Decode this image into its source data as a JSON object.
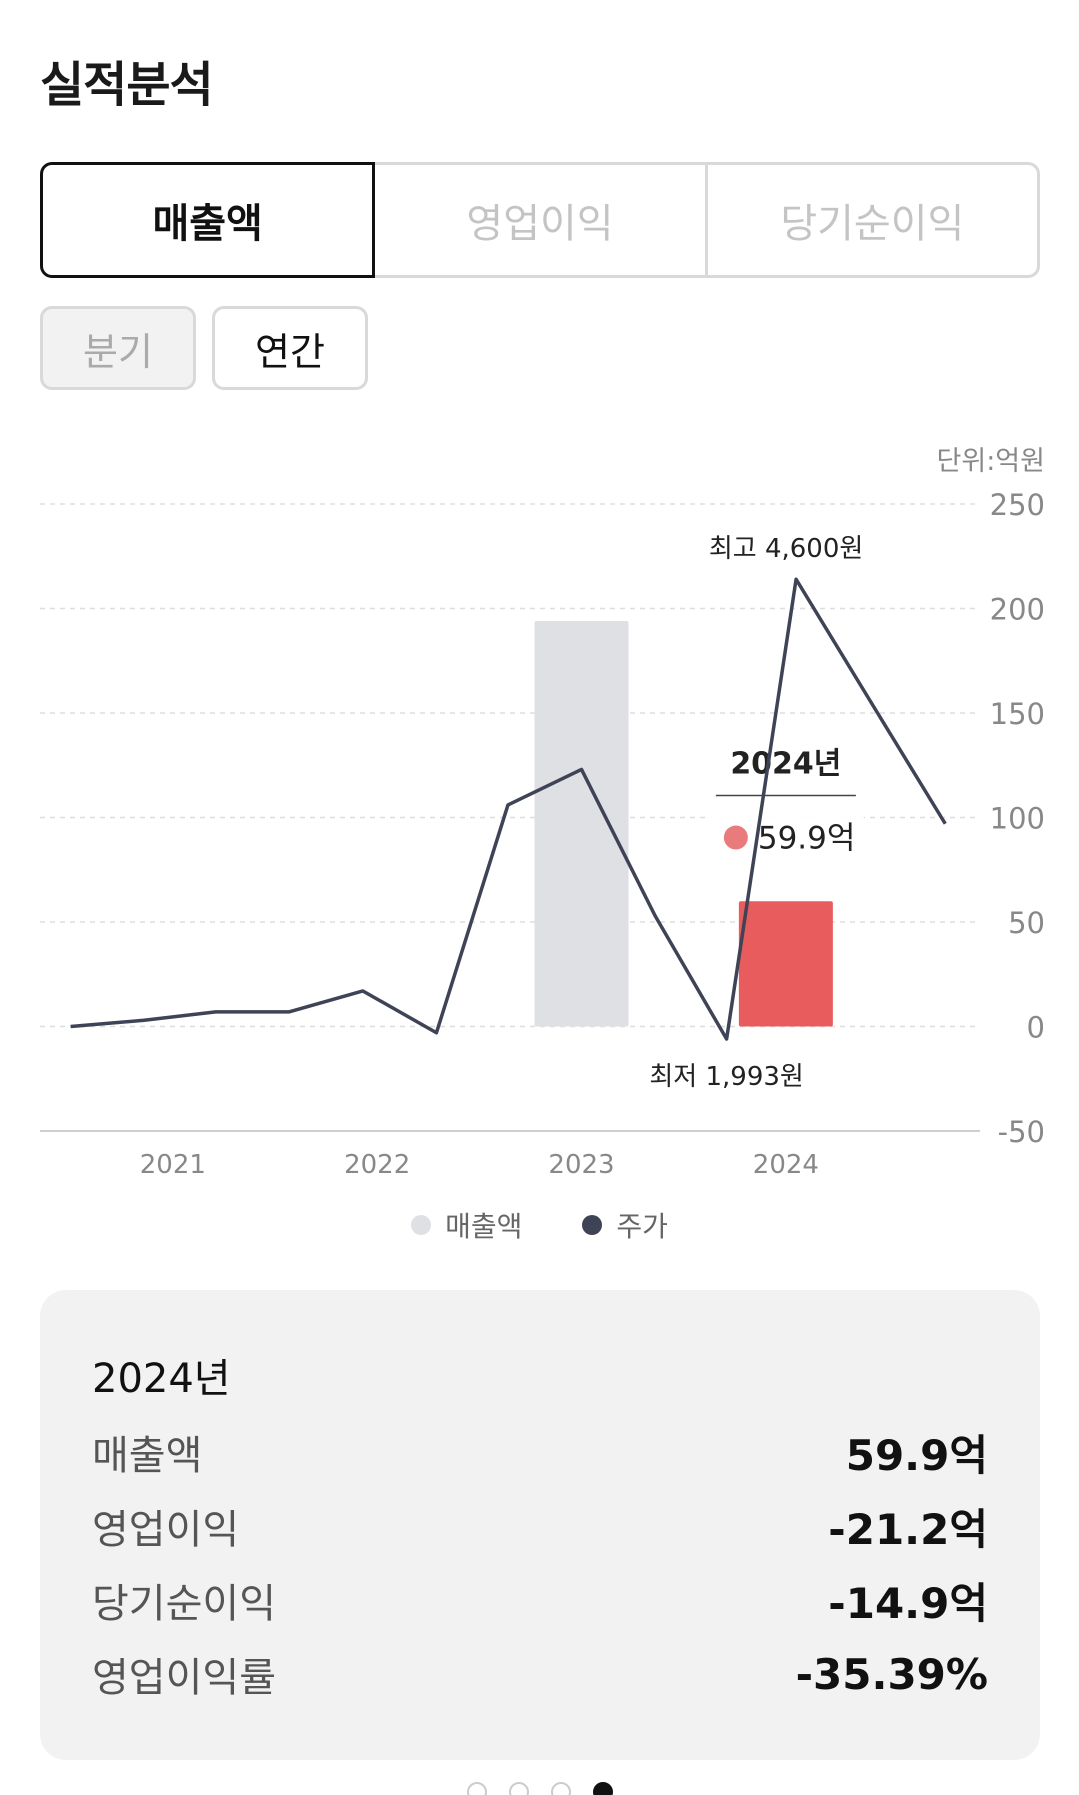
{
  "title": "실적분석",
  "tabs": [
    {
      "label": "매출액",
      "active": true
    },
    {
      "label": "영업이익",
      "active": false
    },
    {
      "label": "당기순이익",
      "active": false
    }
  ],
  "period": [
    {
      "label": "분기",
      "active": false
    },
    {
      "label": "연간",
      "active": true
    }
  ],
  "chart_data": {
    "type": "bar",
    "unit_label": "단위:억원",
    "categories": [
      "2021",
      "2022",
      "2023",
      "2024"
    ],
    "ylim": [
      -50,
      250
    ],
    "yticks": [
      250,
      200,
      150,
      100,
      50,
      0,
      -50
    ],
    "grid": true,
    "series": [
      {
        "name": "매출액",
        "values": [
          null,
          null,
          194,
          59.9
        ]
      }
    ],
    "price_line": {
      "name": "주가",
      "x": [
        0.5,
        0.86,
        1.21,
        1.57,
        1.93,
        2.29,
        2.64,
        3.0,
        3.36,
        3.71,
        4.05,
        4.43,
        4.78
      ],
      "y": [
        0,
        3,
        7,
        7,
        17,
        -3,
        106,
        123,
        53,
        -6,
        214,
        153,
        97
      ]
    },
    "annotations": {
      "high": "최고 4,600원",
      "low": "최저 1,993원"
    },
    "tooltip": {
      "title": "2024년",
      "value": "59.9억"
    },
    "colors": {
      "highlight": "#e95c5e",
      "bar": "#dfe0e4",
      "line": "#3f4356",
      "tooltip_dot": "#ea7b7d"
    }
  },
  "legend": [
    {
      "label": "매출액",
      "color": "#dfe0e4"
    },
    {
      "label": "주가",
      "color": "#3f4356"
    }
  ],
  "summary": {
    "year": "2024년",
    "rows": [
      {
        "label": "매출액",
        "value": "59.9억"
      },
      {
        "label": "영업이익",
        "value": "-21.2억"
      },
      {
        "label": "당기순이익",
        "value": "-14.9억"
      },
      {
        "label": "영업이익률",
        "value": "-35.39%"
      }
    ]
  },
  "pager": {
    "count": 4,
    "active": 3
  }
}
